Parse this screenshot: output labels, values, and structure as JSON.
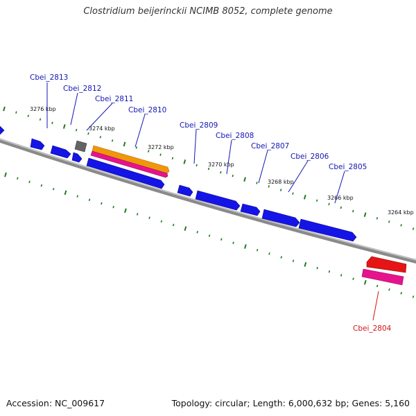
{
  "title": "Clostridium beijerinckii NCIMB 8052, complete genome",
  "footer": {
    "accession": "Accession: NC_009617",
    "stats": "Topology: circular; Length: 6,000,632 bp; Genes: 5,160"
  },
  "colors": {
    "backbone": "#7a7a7a",
    "tick": "#1e7a1e",
    "gene_forward": "#1414e6",
    "label_default": "#1414b4",
    "label_highlight": "#d21414",
    "gene_highlight": "#e61414",
    "gene_pink": "#e6148c",
    "gene_orange": "#f0960a",
    "gene_gray": "#646464"
  },
  "position_labels": [
    "3276 kbp",
    "3274 kbp",
    "3272 kbp",
    "3270 kbp",
    "3268 kbp",
    "3266 kbp",
    "3264 kbp"
  ],
  "gene_labels": [
    "Cbei_2813",
    "Cbei_2812",
    "Cbei_2811",
    "Cbei_2810",
    "Cbei_2809",
    "Cbei_2808",
    "Cbei_2807",
    "Cbei_2806",
    "Cbei_2805",
    "Cbei_2804"
  ]
}
